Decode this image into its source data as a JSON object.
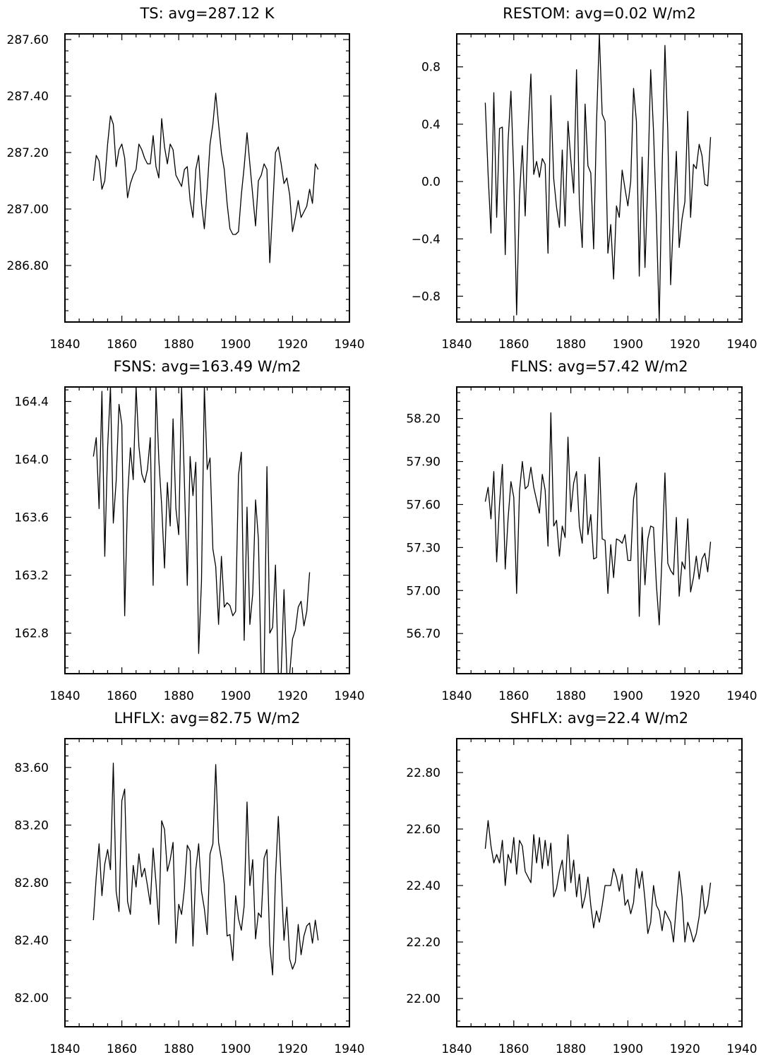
{
  "chart_data": [
    {
      "type": "line",
      "title": "TS: avg=287.12 K",
      "xlim": [
        1840,
        1940
      ],
      "ylim": [
        286.6,
        287.62
      ],
      "xticks": [
        1840,
        1860,
        1880,
        1900,
        1920,
        1940
      ],
      "yticks": [
        286.8,
        287.0,
        287.2,
        287.4,
        287.6
      ],
      "ytick_labels": [
        "286.80",
        "287.00",
        "287.20",
        "287.40",
        "287.60"
      ],
      "x_start": 1850,
      "series": [
        {
          "values": [
            287.1,
            287.19,
            287.17,
            287.07,
            287.1,
            287.23,
            287.33,
            287.3,
            287.15,
            287.21,
            287.23,
            287.18,
            287.04,
            287.09,
            287.12,
            287.14,
            287.23,
            287.21,
            287.18,
            287.16,
            287.16,
            287.26,
            287.15,
            287.11,
            287.32,
            287.22,
            287.16,
            287.23,
            287.21,
            287.12,
            287.1,
            287.08,
            287.14,
            287.15,
            287.03,
            286.97,
            287.14,
            287.19,
            287.02,
            286.93,
            287.07,
            287.23,
            287.3,
            287.41,
            287.3,
            287.2,
            287.14,
            287.02,
            286.93,
            286.91,
            286.91,
            286.92,
            287.05,
            287.15,
            287.27,
            287.16,
            287.05,
            286.94,
            287.1,
            287.12,
            287.16,
            287.14,
            286.81,
            287.0,
            287.2,
            287.22,
            287.16,
            287.09,
            287.11,
            287.05,
            286.92,
            286.97,
            287.03,
            286.97,
            286.99,
            287.01,
            287.07,
            287.02,
            287.16,
            287.14
          ]
        }
      ]
    },
    {
      "type": "line",
      "title": "RESTOM: avg=0.02 W/m2",
      "xlim": [
        1840,
        1940
      ],
      "ylim": [
        -0.98,
        1.03
      ],
      "xticks": [
        1840,
        1860,
        1880,
        1900,
        1920,
        1940
      ],
      "yticks": [
        -0.8,
        -0.4,
        0.0,
        0.4,
        0.8
      ],
      "ytick_labels": [
        "−0.8",
        "−0.4",
        "0.0",
        "0.4",
        "0.8"
      ],
      "x_start": 1850,
      "series": [
        {
          "values": [
            0.55,
            0.05,
            -0.36,
            0.62,
            -0.25,
            0.37,
            0.38,
            -0.51,
            0.28,
            0.63,
            0.05,
            -0.93,
            -0.1,
            0.25,
            -0.24,
            0.35,
            0.75,
            0.05,
            0.14,
            0.03,
            0.16,
            0.12,
            -0.5,
            0.6,
            0.02,
            -0.18,
            -0.32,
            0.22,
            -0.31,
            0.42,
            0.15,
            -0.08,
            0.78,
            -0.15,
            -0.46,
            0.54,
            0.11,
            0.06,
            -0.47,
            0.4,
            1.03,
            0.47,
            0.42,
            -0.5,
            -0.3,
            -0.68,
            -0.17,
            -0.25,
            0.08,
            -0.05,
            -0.17,
            0.0,
            0.65,
            0.42,
            -0.66,
            0.17,
            -0.6,
            0.0,
            0.78,
            0.35,
            -0.25,
            -0.98,
            0.08,
            0.95,
            0.35,
            -0.72,
            -0.25,
            0.21,
            -0.46,
            -0.26,
            -0.14,
            0.49,
            -0.25,
            0.12,
            0.09,
            0.26,
            0.18,
            -0.02,
            -0.03,
            0.31
          ]
        }
      ]
    },
    {
      "type": "line",
      "title": "FSNS: avg=163.49 W/m2",
      "xlim": [
        1840,
        1940
      ],
      "ylim": [
        162.52,
        164.5
      ],
      "xticks": [
        1840,
        1860,
        1880,
        1900,
        1920,
        1940
      ],
      "yticks": [
        162.8,
        163.2,
        163.6,
        164.0,
        164.4
      ],
      "ytick_labels": [
        "162.8",
        "163.2",
        "163.6",
        "164.0",
        "164.4"
      ],
      "x_start": 1850,
      "series": [
        {
          "values": [
            164.02,
            164.15,
            163.66,
            164.47,
            163.33,
            164.08,
            164.5,
            163.56,
            163.85,
            164.38,
            164.24,
            162.92,
            163.73,
            164.08,
            163.86,
            164.5,
            164.09,
            163.9,
            163.84,
            163.93,
            164.15,
            163.13,
            164.5,
            164.0,
            163.68,
            163.25,
            163.84,
            163.54,
            164.28,
            163.66,
            163.48,
            164.5,
            163.84,
            163.13,
            164.02,
            163.75,
            163.98,
            162.66,
            163.16,
            164.5,
            163.93,
            164.01,
            163.38,
            163.26,
            162.86,
            163.33,
            162.98,
            163.01,
            162.99,
            162.92,
            162.95,
            163.89,
            164.05,
            162.75,
            163.67,
            162.86,
            163.07,
            163.72,
            163.45,
            162.52,
            162.52,
            163.95,
            162.8,
            162.84,
            163.27,
            162.52,
            162.52,
            163.1,
            162.52,
            162.52,
            162.76,
            162.82,
            162.98,
            163.02,
            162.85,
            162.95,
            163.22
          ]
        }
      ]
    },
    {
      "type": "line",
      "title": "FLNS: avg=57.42 W/m2",
      "xlim": [
        1840,
        1940
      ],
      "ylim": [
        56.42,
        58.42
      ],
      "xticks": [
        1840,
        1860,
        1880,
        1900,
        1920,
        1940
      ],
      "yticks": [
        56.7,
        57.0,
        57.3,
        57.6,
        57.9,
        58.2
      ],
      "ytick_labels": [
        "56.70",
        "57.00",
        "57.30",
        "57.60",
        "57.90",
        "58.20"
      ],
      "x_start": 1850,
      "series": [
        {
          "values": [
            57.62,
            57.72,
            57.5,
            57.83,
            57.2,
            57.6,
            57.88,
            57.15,
            57.5,
            57.76,
            57.65,
            56.98,
            57.69,
            57.9,
            57.71,
            57.73,
            57.86,
            57.72,
            57.63,
            57.54,
            57.81,
            57.7,
            57.31,
            58.24,
            57.45,
            57.49,
            57.24,
            57.45,
            57.37,
            58.07,
            57.55,
            57.75,
            57.83,
            57.45,
            57.33,
            57.81,
            57.39,
            57.53,
            57.22,
            57.23,
            57.93,
            57.36,
            57.35,
            56.98,
            57.32,
            57.09,
            57.36,
            57.35,
            57.33,
            57.39,
            57.21,
            57.21,
            57.64,
            57.75,
            56.82,
            57.44,
            57.04,
            57.36,
            57.45,
            57.44,
            57.04,
            56.76,
            57.25,
            57.82,
            57.19,
            57.14,
            57.11,
            57.51,
            56.96,
            57.2,
            57.15,
            57.5,
            56.99,
            57.09,
            57.24,
            57.08,
            57.22,
            57.26,
            57.13,
            57.34
          ]
        }
      ]
    },
    {
      "type": "line",
      "title": "LHFLX: avg=82.75 W/m2",
      "xlim": [
        1840,
        1940
      ],
      "ylim": [
        81.8,
        83.8
      ],
      "xticks": [
        1840,
        1860,
        1880,
        1900,
        1920,
        1940
      ],
      "yticks": [
        82.0,
        82.4,
        82.8,
        83.2,
        83.6
      ],
      "ytick_labels": [
        "82.00",
        "82.40",
        "82.80",
        "83.20",
        "83.60"
      ],
      "x_start": 1850,
      "series": [
        {
          "values": [
            82.54,
            82.84,
            83.07,
            82.71,
            82.93,
            83.03,
            82.89,
            83.63,
            82.74,
            82.6,
            83.37,
            83.45,
            82.67,
            82.58,
            82.92,
            82.77,
            83.0,
            82.84,
            82.9,
            82.78,
            82.65,
            83.04,
            82.8,
            82.51,
            83.23,
            83.17,
            82.88,
            82.96,
            83.08,
            82.38,
            82.65,
            82.58,
            82.76,
            83.06,
            83.02,
            82.36,
            82.89,
            83.07,
            82.74,
            82.62,
            82.44,
            83.0,
            83.07,
            83.62,
            83.08,
            82.96,
            82.79,
            82.43,
            82.44,
            82.26,
            82.71,
            82.55,
            82.47,
            82.64,
            83.36,
            82.78,
            82.96,
            82.41,
            82.59,
            82.56,
            82.97,
            83.03,
            82.37,
            82.16,
            82.84,
            83.26,
            82.83,
            82.4,
            82.63,
            82.27,
            82.2,
            82.25,
            82.51,
            82.3,
            82.43,
            82.5,
            82.52,
            82.38,
            82.54,
            82.4
          ]
        }
      ]
    },
    {
      "type": "line",
      "title": "SHFLX: avg=22.4 W/m2",
      "xlim": [
        1840,
        1940
      ],
      "ylim": [
        21.9,
        22.92
      ],
      "xticks": [
        1840,
        1860,
        1880,
        1900,
        1920,
        1940
      ],
      "yticks": [
        22.0,
        22.2,
        22.4,
        22.6,
        22.8
      ],
      "ytick_labels": [
        "22.00",
        "22.20",
        "22.40",
        "22.60",
        "22.80"
      ],
      "x_start": 1850,
      "series": [
        {
          "values": [
            22.53,
            22.63,
            22.54,
            22.48,
            22.51,
            22.48,
            22.56,
            22.4,
            22.51,
            22.48,
            22.57,
            22.44,
            22.56,
            22.54,
            22.45,
            22.43,
            22.41,
            22.58,
            22.48,
            22.57,
            22.46,
            22.56,
            22.47,
            22.55,
            22.36,
            22.39,
            22.45,
            22.49,
            22.38,
            22.58,
            22.41,
            22.49,
            22.36,
            22.44,
            22.32,
            22.36,
            22.43,
            22.33,
            22.25,
            22.31,
            22.27,
            22.33,
            22.4,
            22.4,
            22.4,
            22.46,
            22.43,
            22.38,
            22.44,
            22.33,
            22.35,
            22.3,
            22.34,
            22.46,
            22.39,
            22.45,
            22.35,
            22.23,
            22.27,
            22.4,
            22.33,
            22.31,
            22.24,
            22.31,
            22.29,
            22.27,
            22.2,
            22.33,
            22.45,
            22.36,
            22.2,
            22.27,
            22.24,
            22.2,
            22.23,
            22.29,
            22.4,
            22.3,
            22.33,
            22.41
          ]
        }
      ]
    }
  ]
}
